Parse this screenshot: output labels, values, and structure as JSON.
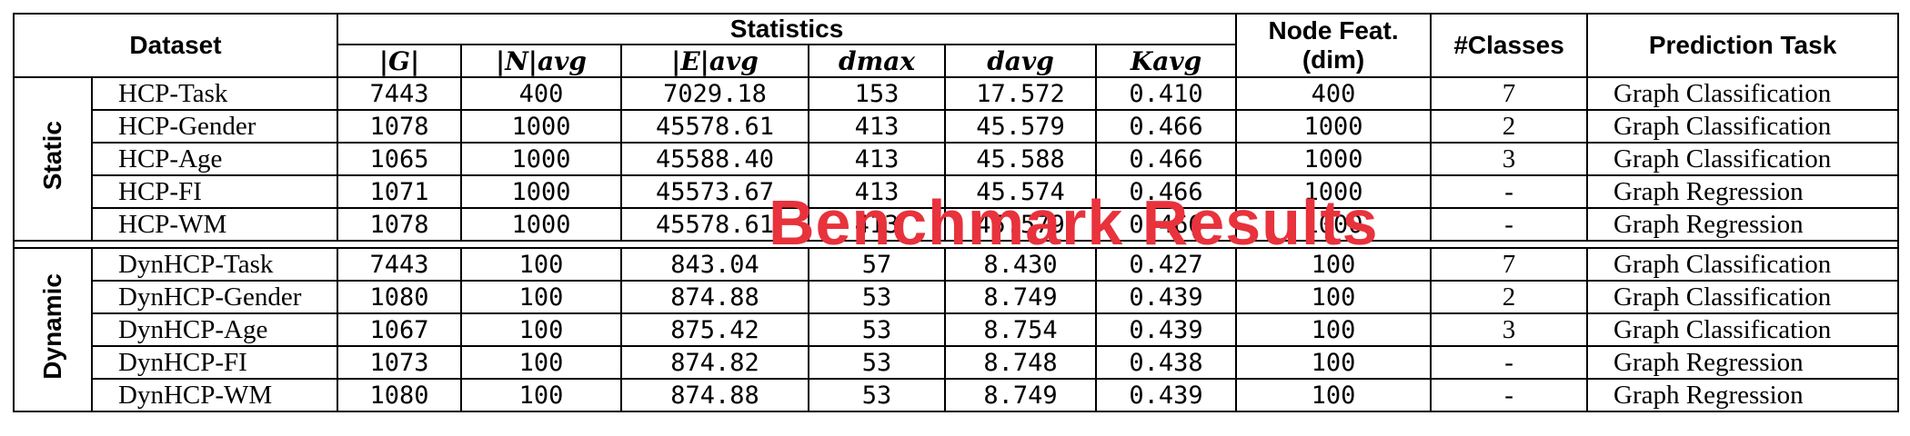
{
  "header": {
    "dataset": "Dataset",
    "statistics": "Statistics",
    "node_feat_line1": "Node Feat.",
    "node_feat_line2": "(dim)",
    "classes": "#Classes",
    "prediction_task": "Prediction Task",
    "stats_cols": [
      "|G|",
      "|N|avg",
      "|E|avg",
      "dmax",
      "davg",
      "Kavg"
    ]
  },
  "groups": [
    {
      "label": "Static",
      "rows": [
        {
          "name": "HCP-Task",
          "G": "7443",
          "N": "400",
          "E": "7029.18",
          "dmax": "153",
          "davg": "17.572",
          "K": "0.410",
          "feat": "400",
          "classes": "7",
          "task": "Graph Classification"
        },
        {
          "name": "HCP-Gender",
          "G": "1078",
          "N": "1000",
          "E": "45578.61",
          "dmax": "413",
          "davg": "45.579",
          "K": "0.466",
          "feat": "1000",
          "classes": "2",
          "task": "Graph Classification"
        },
        {
          "name": "HCP-Age",
          "G": "1065",
          "N": "1000",
          "E": "45588.40",
          "dmax": "413",
          "davg": "45.588",
          "K": "0.466",
          "feat": "1000",
          "classes": "3",
          "task": "Graph Classification"
        },
        {
          "name": "HCP-FI",
          "G": "1071",
          "N": "1000",
          "E": "45573.67",
          "dmax": "413",
          "davg": "45.574",
          "K": "0.466",
          "feat": "1000",
          "classes": "-",
          "task": "Graph Regression"
        },
        {
          "name": "HCP-WM",
          "G": "1078",
          "N": "1000",
          "E": "45578.61",
          "dmax": "413",
          "davg": "45.579",
          "K": "0.466",
          "feat": "1000",
          "classes": "-",
          "task": "Graph Regression"
        }
      ]
    },
    {
      "label": "Dynamic",
      "rows": [
        {
          "name": "DynHCP-Task",
          "G": "7443",
          "N": "100",
          "E": "843.04",
          "dmax": "57",
          "davg": "8.430",
          "K": "0.427",
          "feat": "100",
          "classes": "7",
          "task": "Graph Classification"
        },
        {
          "name": "DynHCP-Gender",
          "G": "1080",
          "N": "100",
          "E": "874.88",
          "dmax": "53",
          "davg": "8.749",
          "K": "0.439",
          "feat": "100",
          "classes": "2",
          "task": "Graph Classification"
        },
        {
          "name": "DynHCP-Age",
          "G": "1067",
          "N": "100",
          "E": "875.42",
          "dmax": "53",
          "davg": "8.754",
          "K": "0.439",
          "feat": "100",
          "classes": "3",
          "task": "Graph Classification"
        },
        {
          "name": "DynHCP-FI",
          "G": "1073",
          "N": "100",
          "E": "874.82",
          "dmax": "53",
          "davg": "8.748",
          "K": "0.438",
          "feat": "100",
          "classes": "-",
          "task": "Graph Regression"
        },
        {
          "name": "DynHCP-WM",
          "G": "1080",
          "N": "100",
          "E": "874.88",
          "dmax": "53",
          "davg": "8.749",
          "K": "0.439",
          "feat": "100",
          "classes": "-",
          "task": "Graph Regression"
        }
      ]
    }
  ],
  "watermark": "Benchmark Results"
}
